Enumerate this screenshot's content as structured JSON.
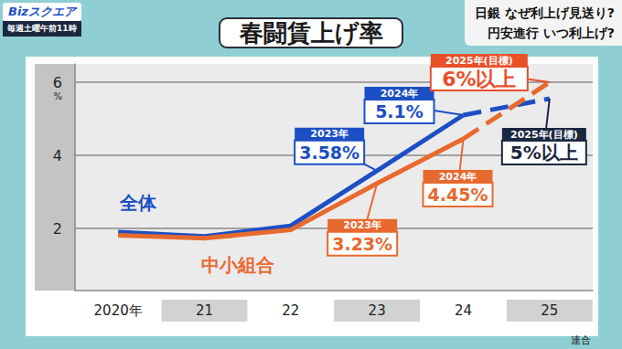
{
  "header": {
    "program": "Bizスクエア",
    "schedule": "毎週土曜午前11時",
    "headlines": [
      "日銀 なぜ利上げ見送り?",
      "円安進行 いつ利上げ?"
    ]
  },
  "chart_data": {
    "type": "line",
    "title": "春闘賃上げ率",
    "categories": [
      "2020年",
      "21",
      "22",
      "23",
      "24",
      "25"
    ],
    "series": [
      {
        "name": "全体",
        "color": "#1d4fc4",
        "line_style": "solid",
        "values": [
          1.9,
          1.78,
          2.07,
          3.58,
          5.1,
          null
        ]
      },
      {
        "name": "中小組合",
        "color": "#e8692e",
        "line_style": "solid",
        "values": [
          1.81,
          1.73,
          1.96,
          3.23,
          4.45,
          null
        ]
      },
      {
        "name": "全体",
        "color": "#1d4fc4",
        "line_style": "dashed",
        "values": [
          null,
          null,
          null,
          null,
          5.1,
          5.55
        ]
      },
      {
        "name": "中小組合",
        "color": "#e8692e",
        "line_style": "dashed",
        "values": [
          null,
          null,
          null,
          null,
          4.45,
          6
        ]
      }
    ],
    "ylim": [
      0.3,
      6.5
    ],
    "yticks": [
      2,
      4,
      6
    ],
    "y_unit": "%",
    "grid": true,
    "annotations": [
      {
        "series": "全体",
        "category": "23",
        "lines": [
          "2023年",
          "3.58%"
        ],
        "color": "#1d4fc4"
      },
      {
        "series": "中小組合",
        "category": "23",
        "lines": [
          "2023年",
          "3.23%"
        ],
        "color": "#e8692e"
      },
      {
        "series": "全体",
        "category": "24",
        "lines": [
          "2024年",
          "5.1%"
        ],
        "color": "#1d4fc4"
      },
      {
        "series": "中小組合",
        "category": "24",
        "lines": [
          "2024年",
          "4.45%"
        ],
        "color": "#e8692e"
      },
      {
        "series": "中小組合",
        "category": "25",
        "lines": [
          "2025年(目標)",
          "6%以上"
        ],
        "color": "#e8502a"
      },
      {
        "series": "全体",
        "category": "25",
        "lines": [
          "2025年(目標)",
          "5%以上"
        ],
        "color": "#1a2740"
      }
    ],
    "source": "連合"
  }
}
